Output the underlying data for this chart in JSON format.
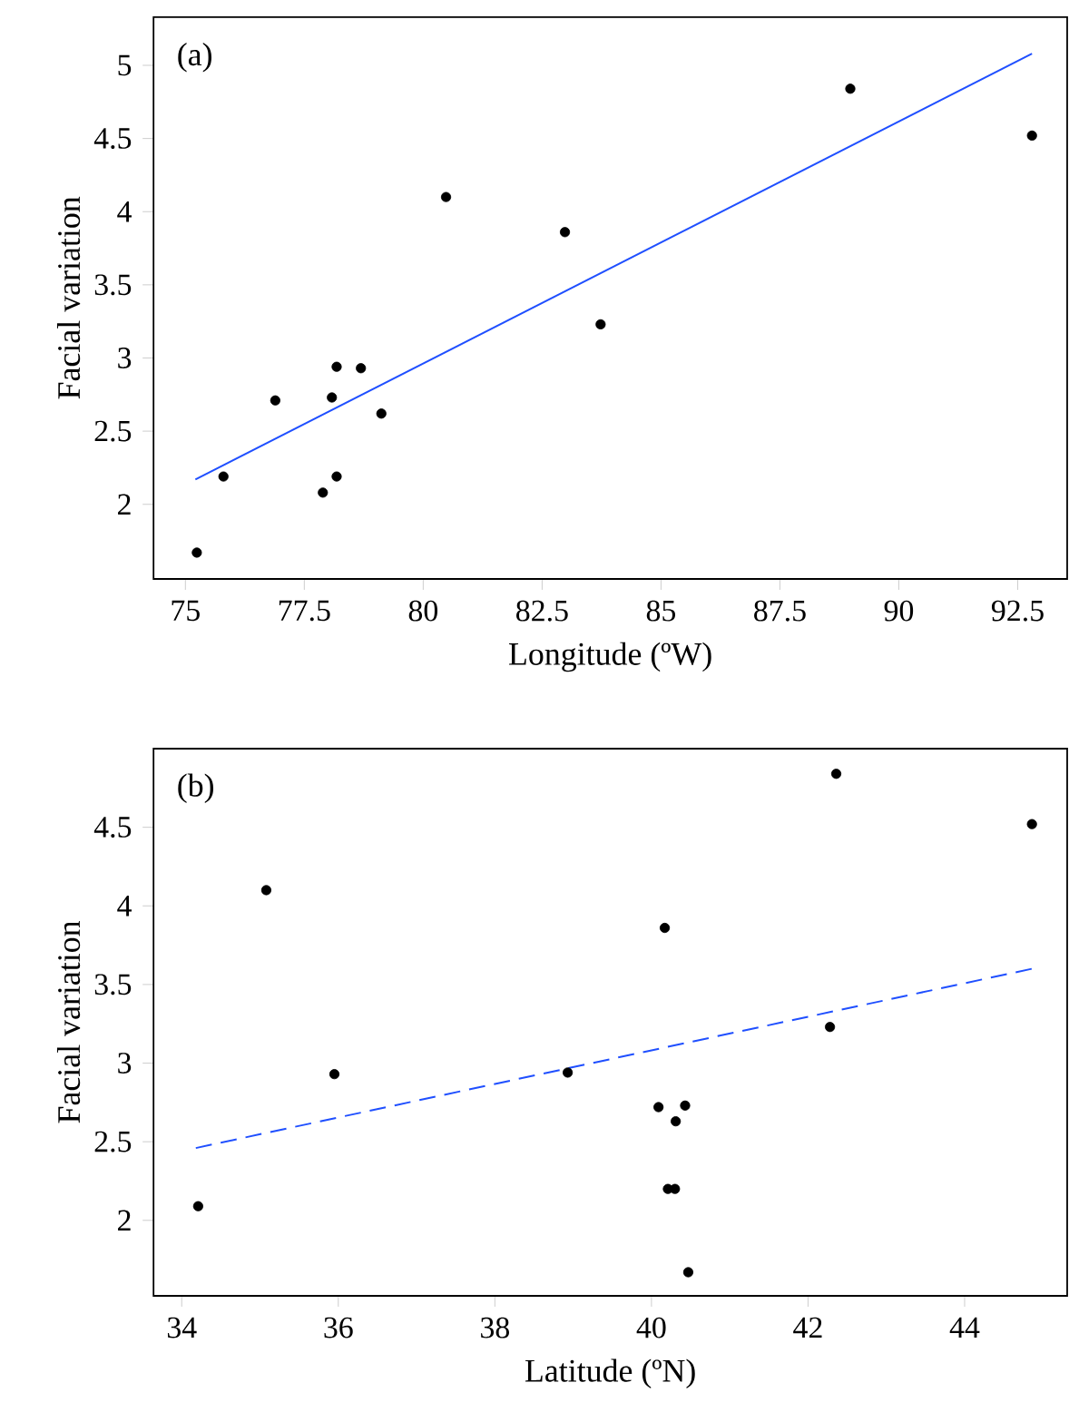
{
  "chart_data": [
    {
      "type": "scatter",
      "xlabel": "Longitude (ºW)",
      "ylabel": "Facial variation",
      "annotations": [
        "(a)"
      ],
      "xlim": [
        74.33,
        93.54
      ],
      "ylim": [
        1.49,
        5.33
      ],
      "xticks": [
        75,
        77.5,
        80,
        82.5,
        85,
        87.5,
        90,
        92.5
      ],
      "yticks": [
        2,
        2.5,
        3,
        3.5,
        4,
        4.5,
        5
      ],
      "series": [
        {
          "color": "#000000",
          "marker": "circle",
          "x": [
            75.24,
            75.8,
            76.89,
            77.89,
            78.08,
            78.18,
            78.18,
            78.69,
            79.12,
            80.48,
            82.98,
            83.73,
            88.98,
            92.8
          ],
          "values": [
            1.67,
            2.19,
            2.71,
            2.08,
            2.73,
            2.94,
            2.19,
            2.93,
            2.62,
            4.1,
            3.86,
            3.23,
            4.84,
            4.52
          ]
        },
        {
          "type": "line",
          "color": "#1f4fff",
          "line_style": "solid",
          "x": [
            75.21,
            92.8
          ],
          "values": [
            2.17,
            5.08
          ]
        }
      ]
    },
    {
      "type": "scatter",
      "xlabel": "Latitude (ºN)",
      "ylabel": "Facial variation",
      "annotations": [
        "(b)"
      ],
      "xlim": [
        33.64,
        45.31
      ],
      "ylim": [
        1.52,
        5.0
      ],
      "xticks": [
        34,
        36,
        38,
        40,
        42,
        44
      ],
      "yticks": [
        2,
        2.5,
        3,
        3.5,
        4,
        4.5
      ],
      "series": [
        {
          "color": "#000000",
          "marker": "circle",
          "x": [
            34.21,
            35.08,
            35.95,
            38.93,
            40.09,
            40.17,
            40.21,
            40.31,
            40.3,
            40.43,
            40.47,
            42.28,
            42.36,
            44.86
          ],
          "values": [
            2.09,
            4.1,
            2.93,
            2.94,
            2.72,
            3.86,
            2.2,
            2.63,
            2.2,
            2.73,
            1.67,
            3.23,
            4.84,
            4.52
          ]
        },
        {
          "type": "line",
          "color": "#1f4fff",
          "line_style": "dashed",
          "x": [
            34.18,
            44.86
          ],
          "values": [
            2.46,
            3.6
          ]
        }
      ]
    }
  ]
}
